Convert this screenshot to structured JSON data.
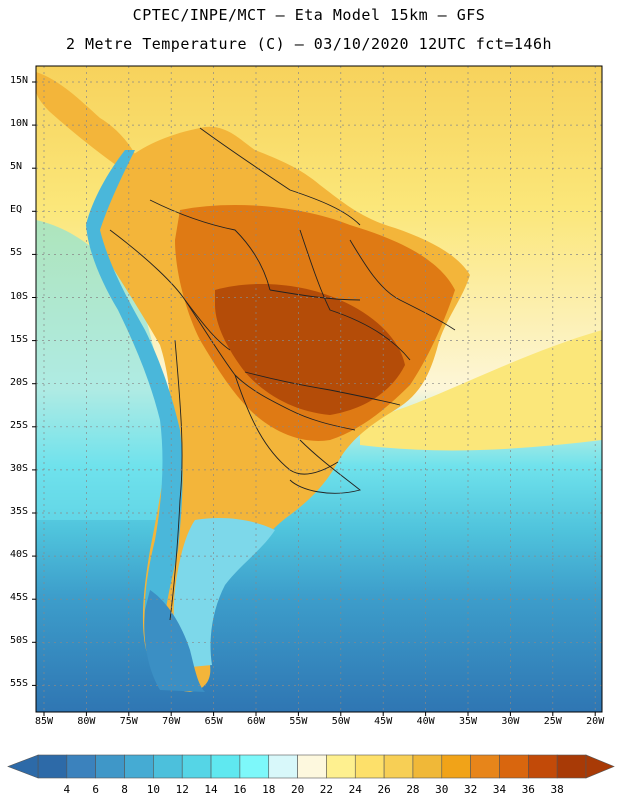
{
  "header": {
    "line1": "CPTEC/INPE/MCT –  Eta Model 15km – GFS",
    "line2": "2 Metre Temperature (C) – 03/10/2020 12UTC fct=146h"
  },
  "axes": {
    "lat_labels": [
      "15N",
      "10N",
      "5N",
      "EQ",
      "5S",
      "10S",
      "15S",
      "20S",
      "25S",
      "30S",
      "35S",
      "40S",
      "45S",
      "50S",
      "55S"
    ],
    "lon_labels": [
      "85W",
      "80W",
      "75W",
      "70W",
      "65W",
      "60W",
      "55W",
      "50W",
      "45W",
      "40W",
      "35W",
      "30W",
      "25W",
      "20W"
    ]
  },
  "legend": {
    "levels": [
      "4",
      "6",
      "8",
      "10",
      "12",
      "14",
      "16",
      "18",
      "20",
      "22",
      "24",
      "26",
      "28",
      "30",
      "32",
      "34",
      "36",
      "38"
    ],
    "colors": [
      "#2d6aa8",
      "#3b82bd",
      "#3f97c8",
      "#45abd3",
      "#4cc0dc",
      "#55d5e6",
      "#5fe8f0",
      "#7df8fa",
      "#d8f8fa",
      "#fdf8de",
      "#fef08f",
      "#fde06a",
      "#f7cf55",
      "#f0b838",
      "#f1a318",
      "#e7851a",
      "#d9660e",
      "#c24a08",
      "#a83a06"
    ],
    "low_arrow_color": "#2d6aa8",
    "high_arrow_color": "#a83a06"
  },
  "field": {
    "ocean_north": "#f7d25c",
    "ocean_equator": "#fbe77a",
    "ocean_mid": "#fdf6d8",
    "ocean_south1": "#6fe2ec",
    "ocean_south2": "#4fc3dc",
    "ocean_south3": "#3d9ecb",
    "ocean_south4": "#2f76b3",
    "land_warm": "#f3b53a",
    "land_hot": "#df7a14",
    "land_core": "#b44c08",
    "andes": "#4ab7da",
    "patagonia": "#7dd8ea",
    "chile_south": "#3b8fc4"
  }
}
